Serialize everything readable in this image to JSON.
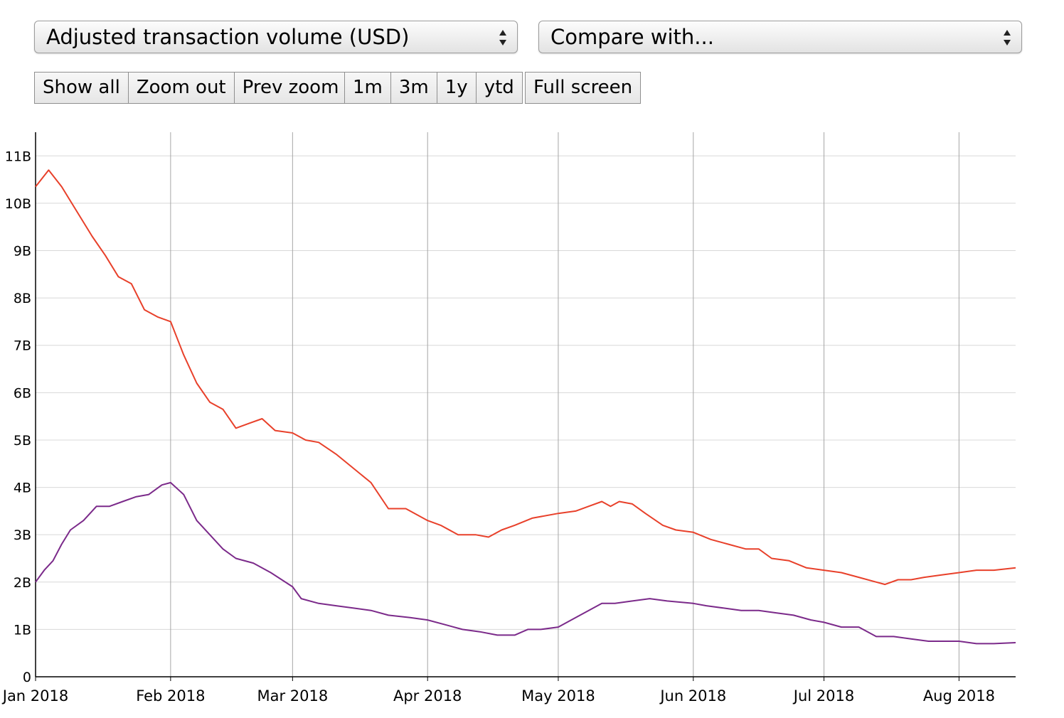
{
  "controls": {
    "metric_label": "Adjusted transaction volume (USD)",
    "compare_label": "Compare with...",
    "zoom_buttons": [
      "Show all",
      "Zoom out",
      "Prev zoom"
    ],
    "range_buttons": [
      "1m",
      "3m",
      "1y",
      "ytd"
    ],
    "fullscreen_label": "Full screen"
  },
  "chart_data": {
    "type": "line",
    "title": "",
    "xlabel": "",
    "ylabel": "",
    "x_range": [
      "2018-01-01",
      "2018-08-14"
    ],
    "ylim": [
      0,
      11500000000
    ],
    "y_ticks": [
      {
        "value": 0,
        "label": "0"
      },
      {
        "value": 1000000000,
        "label": "1B"
      },
      {
        "value": 2000000000,
        "label": "2B"
      },
      {
        "value": 3000000000,
        "label": "3B"
      },
      {
        "value": 4000000000,
        "label": "4B"
      },
      {
        "value": 5000000000,
        "label": "5B"
      },
      {
        "value": 6000000000,
        "label": "6B"
      },
      {
        "value": 7000000000,
        "label": "7B"
      },
      {
        "value": 8000000000,
        "label": "8B"
      },
      {
        "value": 9000000000,
        "label": "9B"
      },
      {
        "value": 10000000000,
        "label": "10B"
      },
      {
        "value": 11000000000,
        "label": "11B"
      }
    ],
    "x_ticks": [
      {
        "date": "2018-01-01",
        "label": "Jan 2018"
      },
      {
        "date": "2018-02-01",
        "label": "Feb 2018"
      },
      {
        "date": "2018-03-01",
        "label": "Mar 2018"
      },
      {
        "date": "2018-04-01",
        "label": "Apr 2018"
      },
      {
        "date": "2018-05-01",
        "label": "May 2018"
      },
      {
        "date": "2018-06-01",
        "label": "Jun 2018"
      },
      {
        "date": "2018-07-01",
        "label": "Jul 2018"
      },
      {
        "date": "2018-08-01",
        "label": "Aug 2018"
      }
    ],
    "grid": true,
    "series": [
      {
        "color": "#e8402a",
        "points": [
          [
            "2018-01-01",
            10.35
          ],
          [
            "2018-01-04",
            10.7
          ],
          [
            "2018-01-07",
            10.35
          ],
          [
            "2018-01-10",
            9.9
          ],
          [
            "2018-01-14",
            9.3
          ],
          [
            "2018-01-17",
            8.9
          ],
          [
            "2018-01-20",
            8.45
          ],
          [
            "2018-01-23",
            8.3
          ],
          [
            "2018-01-26",
            7.75
          ],
          [
            "2018-01-29",
            7.6
          ],
          [
            "2018-02-01",
            7.5
          ],
          [
            "2018-02-04",
            6.8
          ],
          [
            "2018-02-07",
            6.2
          ],
          [
            "2018-02-10",
            5.8
          ],
          [
            "2018-02-13",
            5.65
          ],
          [
            "2018-02-16",
            5.25
          ],
          [
            "2018-02-19",
            5.35
          ],
          [
            "2018-02-22",
            5.45
          ],
          [
            "2018-02-25",
            5.2
          ],
          [
            "2018-03-01",
            5.15
          ],
          [
            "2018-03-04",
            5.0
          ],
          [
            "2018-03-07",
            4.95
          ],
          [
            "2018-03-11",
            4.7
          ],
          [
            "2018-03-15",
            4.4
          ],
          [
            "2018-03-19",
            4.1
          ],
          [
            "2018-03-23",
            3.55
          ],
          [
            "2018-03-27",
            3.55
          ],
          [
            "2018-04-01",
            3.3
          ],
          [
            "2018-04-04",
            3.2
          ],
          [
            "2018-04-08",
            3.0
          ],
          [
            "2018-04-12",
            3.0
          ],
          [
            "2018-04-15",
            2.95
          ],
          [
            "2018-04-18",
            3.1
          ],
          [
            "2018-04-21",
            3.2
          ],
          [
            "2018-04-25",
            3.35
          ],
          [
            "2018-05-01",
            3.45
          ],
          [
            "2018-05-05",
            3.5
          ],
          [
            "2018-05-08",
            3.6
          ],
          [
            "2018-05-11",
            3.7
          ],
          [
            "2018-05-13",
            3.6
          ],
          [
            "2018-05-15",
            3.7
          ],
          [
            "2018-05-18",
            3.65
          ],
          [
            "2018-05-21",
            3.45
          ],
          [
            "2018-05-25",
            3.2
          ],
          [
            "2018-05-28",
            3.1
          ],
          [
            "2018-06-01",
            3.05
          ],
          [
            "2018-06-05",
            2.9
          ],
          [
            "2018-06-09",
            2.8
          ],
          [
            "2018-06-13",
            2.7
          ],
          [
            "2018-06-16",
            2.7
          ],
          [
            "2018-06-19",
            2.5
          ],
          [
            "2018-06-23",
            2.45
          ],
          [
            "2018-06-27",
            2.3
          ],
          [
            "2018-07-01",
            2.25
          ],
          [
            "2018-07-05",
            2.2
          ],
          [
            "2018-07-09",
            2.1
          ],
          [
            "2018-07-13",
            2.0
          ],
          [
            "2018-07-15",
            1.95
          ],
          [
            "2018-07-18",
            2.05
          ],
          [
            "2018-07-21",
            2.05
          ],
          [
            "2018-07-24",
            2.1
          ],
          [
            "2018-07-28",
            2.15
          ],
          [
            "2018-08-01",
            2.2
          ],
          [
            "2018-08-05",
            2.25
          ],
          [
            "2018-08-09",
            2.25
          ],
          [
            "2018-08-14",
            2.3
          ]
        ]
      },
      {
        "color": "#7b2a8a",
        "points": [
          [
            "2018-01-01",
            2.0
          ],
          [
            "2018-01-03",
            2.25
          ],
          [
            "2018-01-05",
            2.45
          ],
          [
            "2018-01-07",
            2.8
          ],
          [
            "2018-01-09",
            3.1
          ],
          [
            "2018-01-12",
            3.3
          ],
          [
            "2018-01-15",
            3.6
          ],
          [
            "2018-01-18",
            3.6
          ],
          [
            "2018-01-21",
            3.7
          ],
          [
            "2018-01-24",
            3.8
          ],
          [
            "2018-01-27",
            3.85
          ],
          [
            "2018-01-30",
            4.05
          ],
          [
            "2018-02-01",
            4.1
          ],
          [
            "2018-02-04",
            3.85
          ],
          [
            "2018-02-07",
            3.3
          ],
          [
            "2018-02-10",
            3.0
          ],
          [
            "2018-02-13",
            2.7
          ],
          [
            "2018-02-16",
            2.5
          ],
          [
            "2018-02-20",
            2.4
          ],
          [
            "2018-02-24",
            2.2
          ],
          [
            "2018-03-01",
            1.9
          ],
          [
            "2018-03-03",
            1.65
          ],
          [
            "2018-03-07",
            1.55
          ],
          [
            "2018-03-11",
            1.5
          ],
          [
            "2018-03-15",
            1.45
          ],
          [
            "2018-03-19",
            1.4
          ],
          [
            "2018-03-23",
            1.3
          ],
          [
            "2018-03-28",
            1.25
          ],
          [
            "2018-04-01",
            1.2
          ],
          [
            "2018-04-05",
            1.1
          ],
          [
            "2018-04-09",
            1.0
          ],
          [
            "2018-04-13",
            0.95
          ],
          [
            "2018-04-17",
            0.88
          ],
          [
            "2018-04-21",
            0.88
          ],
          [
            "2018-04-24",
            1.0
          ],
          [
            "2018-04-27",
            1.0
          ],
          [
            "2018-05-01",
            1.05
          ],
          [
            "2018-05-05",
            1.25
          ],
          [
            "2018-05-08",
            1.4
          ],
          [
            "2018-05-11",
            1.55
          ],
          [
            "2018-05-14",
            1.55
          ],
          [
            "2018-05-18",
            1.6
          ],
          [
            "2018-05-22",
            1.65
          ],
          [
            "2018-05-26",
            1.6
          ],
          [
            "2018-06-01",
            1.55
          ],
          [
            "2018-06-04",
            1.5
          ],
          [
            "2018-06-08",
            1.45
          ],
          [
            "2018-06-12",
            1.4
          ],
          [
            "2018-06-16",
            1.4
          ],
          [
            "2018-06-20",
            1.35
          ],
          [
            "2018-06-24",
            1.3
          ],
          [
            "2018-06-28",
            1.2
          ],
          [
            "2018-07-01",
            1.15
          ],
          [
            "2018-07-05",
            1.05
          ],
          [
            "2018-07-09",
            1.05
          ],
          [
            "2018-07-13",
            0.85
          ],
          [
            "2018-07-17",
            0.85
          ],
          [
            "2018-07-21",
            0.8
          ],
          [
            "2018-07-25",
            0.75
          ],
          [
            "2018-08-01",
            0.75
          ],
          [
            "2018-08-05",
            0.7
          ],
          [
            "2018-08-09",
            0.7
          ],
          [
            "2018-08-14",
            0.72
          ]
        ]
      }
    ]
  }
}
